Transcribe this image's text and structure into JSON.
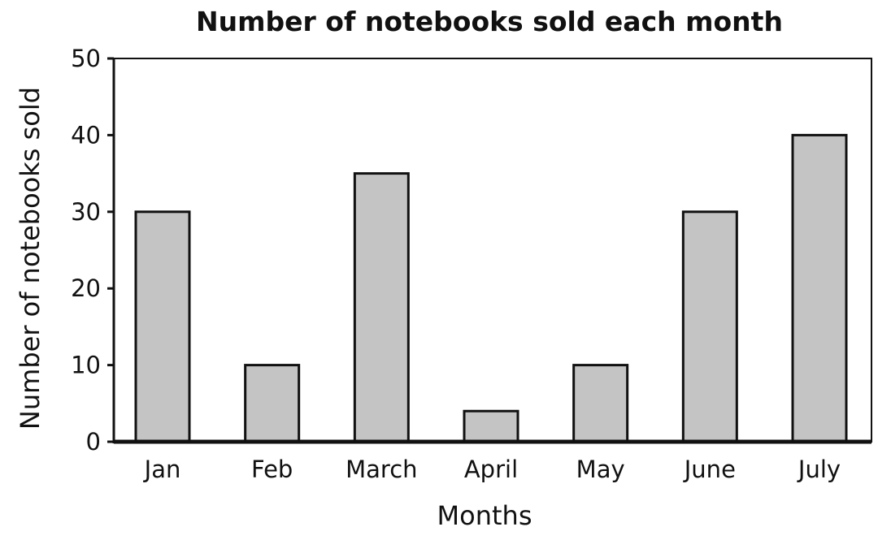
{
  "chart_data": {
    "type": "bar",
    "title": "Number of notebooks sold each month",
    "xlabel": "Months",
    "ylabel": "Number of notebooks sold",
    "categories": [
      "Jan",
      "Feb",
      "March",
      "April",
      "May",
      "June",
      "July"
    ],
    "values": [
      30,
      10,
      35,
      4,
      10,
      30,
      40
    ],
    "ylim": [
      0,
      50
    ],
    "yticks": [
      "0",
      "10",
      "20",
      "30",
      "40",
      "50"
    ],
    "grid": false,
    "legend": "none",
    "colors": {
      "bar_fill": "#c4c4c4",
      "bar_stroke": "#111111",
      "axis": "#111111",
      "text": "#111111"
    }
  }
}
